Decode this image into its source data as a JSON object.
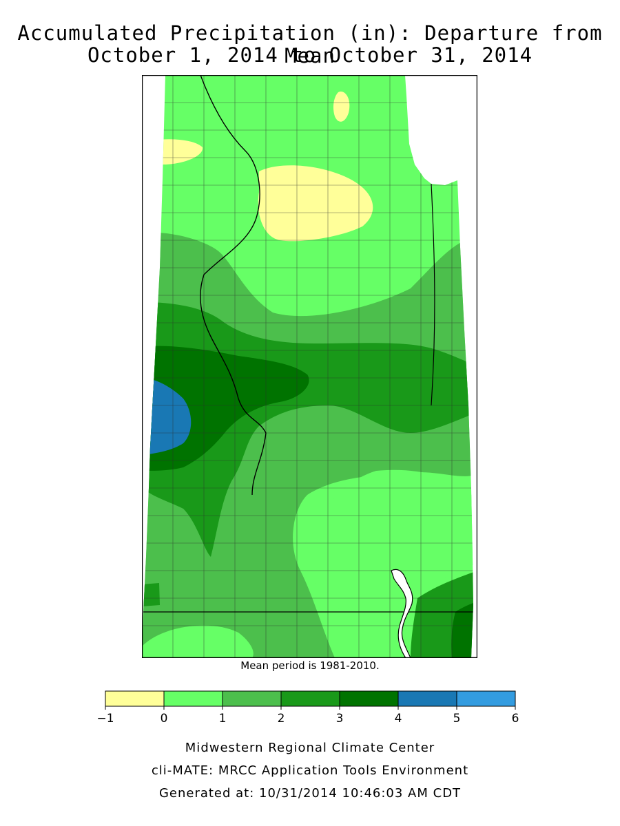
{
  "title": {
    "line1": "Accumulated Precipitation (in): Departure from Mean",
    "line2": "October 1, 2014 to October 31, 2014"
  },
  "mean_note": "Mean period is 1981-2010.",
  "legend": {
    "bins": [
      {
        "from": -1,
        "to": 0,
        "color": "#ffff99"
      },
      {
        "from": 0,
        "to": 1,
        "color": "#66ff66"
      },
      {
        "from": 1,
        "to": 2,
        "color": "#4cbf4c"
      },
      {
        "from": 2,
        "to": 3,
        "color": "#199919"
      },
      {
        "from": 3,
        "to": 4,
        "color": "#007300"
      },
      {
        "from": 4,
        "to": 5,
        "color": "#1978b4"
      },
      {
        "from": 5,
        "to": 6,
        "color": "#339ce0"
      }
    ],
    "ticks": [
      "−1",
      "0",
      "1",
      "2",
      "3",
      "4",
      "5",
      "6"
    ]
  },
  "footer": {
    "line1": "Midwestern Regional Climate Center",
    "line2": "cli-MATE: MRCC Application Tools Environment",
    "line3": "Generated at: 10/31/2014 10:46:03 AM CDT"
  },
  "map_colors": {
    "below_normal": "#ffff99",
    "c0_1": "#66ff66",
    "c1_2": "#4cbf4c",
    "c2_3": "#199919",
    "c3_4": "#007300",
    "c4_5": "#1978b4",
    "lake": "#ffffff",
    "border": "#000000"
  }
}
